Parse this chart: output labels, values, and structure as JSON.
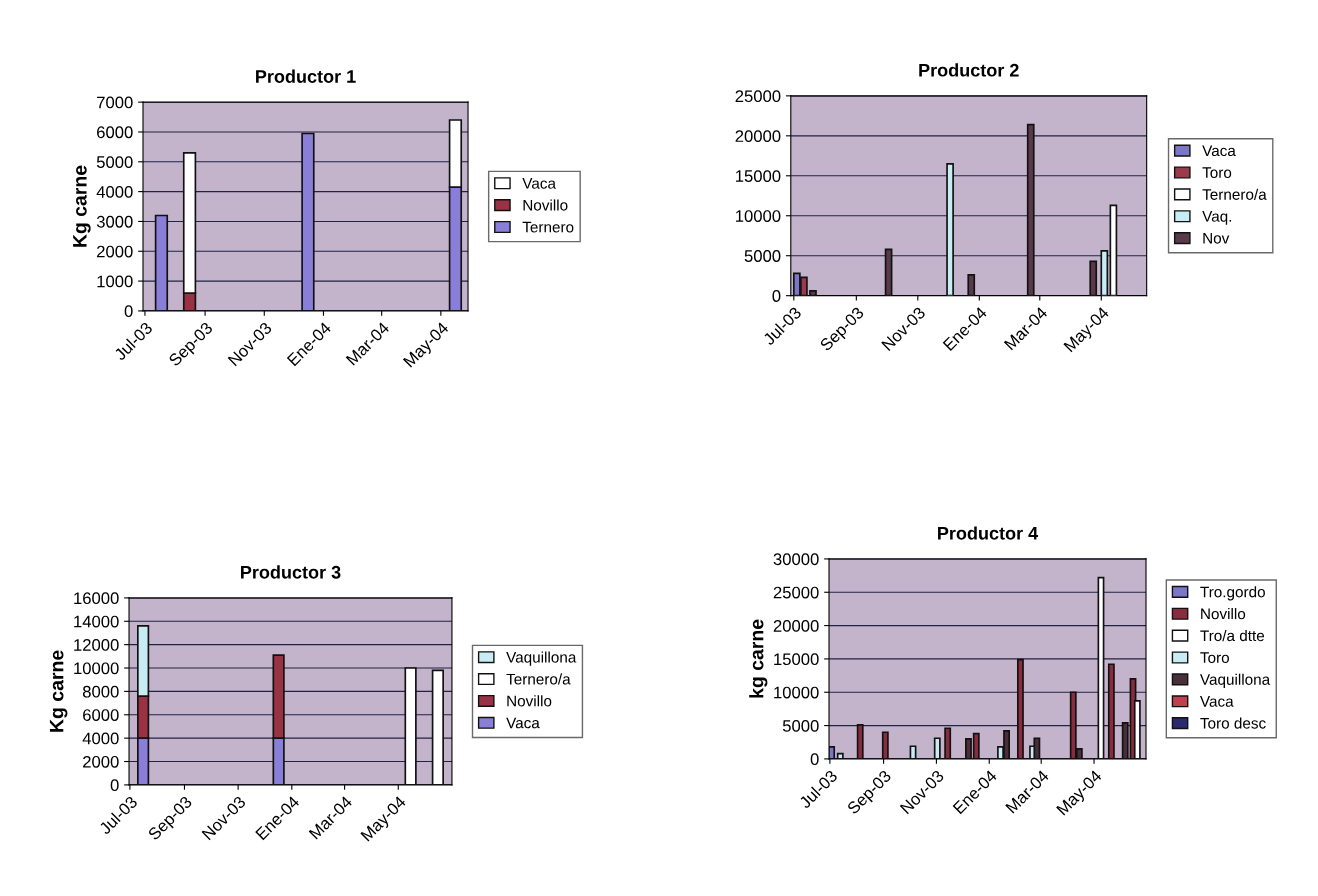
{
  "chart_data": [
    {
      "type": "bar",
      "title": "Productor 1",
      "ylabel": "Kg carne",
      "stacked": true,
      "legend": "right",
      "grid": "y",
      "x": [
        "2003-07-18",
        "2003-08-16",
        "2003-12-16",
        "2004-05-16"
      ],
      "series": [
        {
          "name": "Ternero",
          "color": "#8a7fd8",
          "values": [
            3200,
            null,
            5950,
            4150
          ]
        },
        {
          "name": "Novillo",
          "color": "#993344",
          "values": [
            null,
            600,
            null,
            null
          ]
        },
        {
          "name": "Vaca",
          "color": "#ffffff",
          "values": [
            null,
            4700,
            null,
            2250
          ]
        }
      ],
      "xlim": [
        "2003-06-29",
        "2004-05-29"
      ],
      "xticks": [
        {
          "value": "2003-07-01",
          "label": "Jul-03"
        },
        {
          "value": "2003-09-01",
          "label": "Sep-03"
        },
        {
          "value": "2003-11-01",
          "label": "Nov-03"
        },
        {
          "value": "2004-01-01",
          "label": "Ene-04"
        },
        {
          "value": "2004-03-01",
          "label": "Mar-04"
        },
        {
          "value": "2004-05-01",
          "label": "May-04"
        }
      ],
      "ylim": [
        0,
        7000
      ],
      "yticks": [
        0,
        1000,
        2000,
        3000,
        4000,
        5000,
        6000,
        7000
      ]
    },
    {
      "type": "bar",
      "title": "Productor 2",
      "legend": "right",
      "grid": "y",
      "series": [
        {
          "name": "Vaca",
          "color": "#7b76c8",
          "x": [
            "2003-07-04"
          ],
          "values": [
            2800
          ]
        },
        {
          "name": "Toro",
          "color": "#9b3a4a",
          "x": [
            "2003-07-11"
          ],
          "values": [
            2300
          ]
        },
        {
          "name": "Ternero/a",
          "color": "#ffffff",
          "x": [
            "2004-05-13"
          ],
          "values": [
            11300
          ]
        },
        {
          "name": "Vaq.",
          "color": "#c8ecf4",
          "x": [
            "2003-12-03",
            "2004-05-04"
          ],
          "values": [
            16500,
            5600
          ]
        },
        {
          "name": "Nov",
          "color": "#5a3a4a",
          "x": [
            "2003-07-20",
            "2003-10-03",
            "2003-12-24",
            "2004-02-21",
            "2004-04-23"
          ],
          "values": [
            600,
            5800,
            2600,
            21400,
            4300
          ]
        }
      ],
      "xlim": [
        "2003-06-28",
        "2004-06-15"
      ],
      "xticks": [
        {
          "value": "2003-07-01",
          "label": "Jul-03"
        },
        {
          "value": "2003-09-01",
          "label": "Sep-03"
        },
        {
          "value": "2003-11-01",
          "label": "Nov-03"
        },
        {
          "value": "2004-01-01",
          "label": "Ene-04"
        },
        {
          "value": "2004-03-01",
          "label": "Mar-04"
        },
        {
          "value": "2004-05-01",
          "label": "May-04"
        }
      ],
      "ylim": [
        0,
        25000
      ],
      "yticks": [
        0,
        5000,
        10000,
        15000,
        20000,
        25000
      ]
    },
    {
      "type": "bar",
      "title": "Productor 3",
      "ylabel": "Kg carne",
      "stacked": true,
      "legend": "right",
      "grid": "y",
      "x": [
        "2003-07-16",
        "2003-12-17",
        "2004-05-15",
        "2004-06-15"
      ],
      "series": [
        {
          "name": "Vaca",
          "color": "#8a7fd8",
          "values": [
            4000,
            4000,
            null,
            null
          ]
        },
        {
          "name": "Novillo",
          "color": "#993344",
          "values": [
            3600,
            7100,
            null,
            null
          ]
        },
        {
          "name": "Ternero/a",
          "color": "#ffffff",
          "values": [
            null,
            null,
            10000,
            9800
          ]
        },
        {
          "name": "Vaquillona",
          "color": "#c8ecf4",
          "values": [
            6000,
            null,
            null,
            null
          ]
        }
      ],
      "xlim": [
        "2003-06-30",
        "2004-07-01"
      ],
      "xticks": [
        {
          "value": "2003-07-01",
          "label": "Jul-03"
        },
        {
          "value": "2003-09-01",
          "label": "Sep-03"
        },
        {
          "value": "2003-11-01",
          "label": "Nov-03"
        },
        {
          "value": "2004-01-01",
          "label": "Ene-04"
        },
        {
          "value": "2004-03-01",
          "label": "Mar-04"
        },
        {
          "value": "2004-05-01",
          "label": "May-04"
        }
      ],
      "ylim": [
        0,
        16000
      ],
      "yticks": [
        0,
        2000,
        4000,
        6000,
        8000,
        10000,
        12000,
        14000,
        16000
      ]
    },
    {
      "type": "bar",
      "title": "Productor 4",
      "ylabel": "kg carne",
      "legend": "right",
      "grid": "y",
      "series": [
        {
          "name": "Tro.gordo",
          "color": "#7b76c8",
          "x": [
            "2003-07-03"
          ],
          "values": [
            1800
          ]
        },
        {
          "name": "Novillo",
          "color": "#8a2c40",
          "x": [
            "2003-08-05",
            "2003-09-03",
            "2003-11-14",
            "2003-12-17",
            "2004-02-06",
            "2004-04-07",
            "2004-05-21",
            "2004-06-15"
          ],
          "values": [
            5100,
            4000,
            4600,
            3800,
            14900,
            10000,
            14200,
            12000
          ]
        },
        {
          "name": "Tro/a dtte",
          "color": "#ffffff",
          "x": [
            "2004-05-09",
            "2004-06-20"
          ],
          "values": [
            27200,
            8700
          ]
        },
        {
          "name": "Toro",
          "color": "#c8ecf4",
          "x": [
            "2003-07-13",
            "2003-10-05",
            "2003-11-02",
            "2004-01-14",
            "2004-02-20"
          ],
          "values": [
            800,
            1900,
            3100,
            1800,
            1900
          ]
        },
        {
          "name": "Vaquillona",
          "color": "#4a2f3a",
          "x": [
            "2003-12-08",
            "2004-01-21",
            "2004-02-25",
            "2004-04-14",
            "2004-06-06"
          ],
          "values": [
            3000,
            4200,
            3100,
            1500,
            5400
          ]
        },
        {
          "name": "Vaca",
          "color": "#c04050"
        },
        {
          "name": "Toro desc",
          "color": "#2a2a70"
        }
      ],
      "xlim": [
        "2003-06-30",
        "2004-06-30"
      ],
      "xticks": [
        {
          "value": "2003-07-01",
          "label": "Jul-03"
        },
        {
          "value": "2003-09-01",
          "label": "Sep-03"
        },
        {
          "value": "2003-11-01",
          "label": "Nov-03"
        },
        {
          "value": "2004-01-01",
          "label": "Ene-04"
        },
        {
          "value": "2004-03-01",
          "label": "Mar-04"
        },
        {
          "value": "2004-05-01",
          "label": "May-04"
        }
      ],
      "ylim": [
        0,
        30000
      ],
      "yticks": [
        0,
        5000,
        10000,
        15000,
        20000,
        25000,
        30000
      ]
    }
  ]
}
